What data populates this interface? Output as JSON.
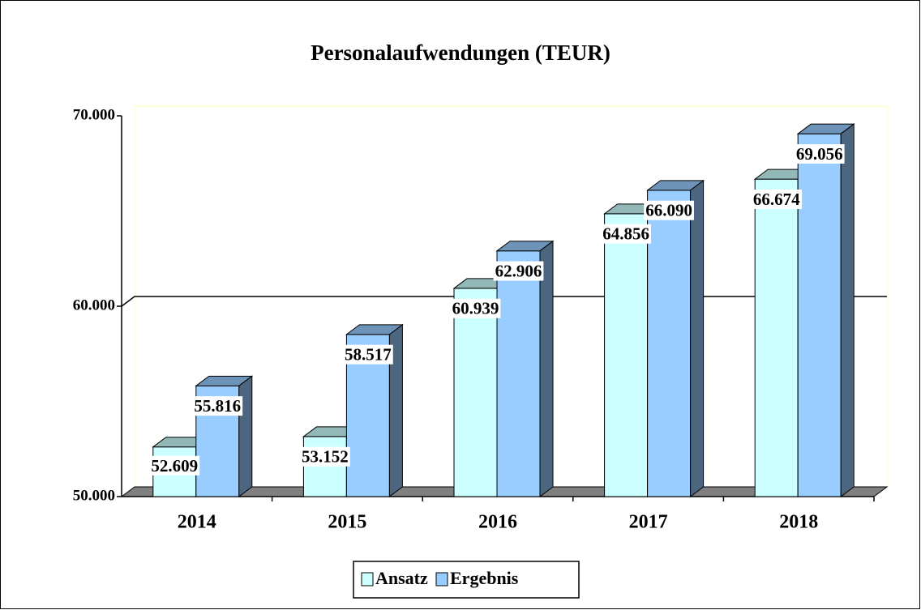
{
  "chart_data": {
    "type": "bar3d",
    "title": "Personalaufwendungen (TEUR)",
    "categories": [
      "2014",
      "2015",
      "2016",
      "2017",
      "2018"
    ],
    "series": [
      {
        "name": "Ansatz",
        "color": "#ccffff",
        "values": [
          52609,
          53152,
          60939,
          64856,
          66674
        ],
        "value_labels": [
          "52.609",
          "53.152",
          "60.939",
          "64.856",
          "66.674"
        ]
      },
      {
        "name": "Ergebnis",
        "color": "#99ccff",
        "values": [
          55816,
          58517,
          62906,
          66090,
          69056
        ],
        "value_labels": [
          "55.816",
          "58.517",
          "62.906",
          "66.090",
          "69.056"
        ]
      }
    ],
    "ylim": [
      50000,
      70000
    ],
    "yticks": [
      {
        "value": 50000,
        "label": "50.000"
      },
      {
        "value": 60000,
        "label": "60.000"
      },
      {
        "value": 70000,
        "label": "70.000"
      }
    ],
    "grid": true,
    "legend": "bottom"
  }
}
